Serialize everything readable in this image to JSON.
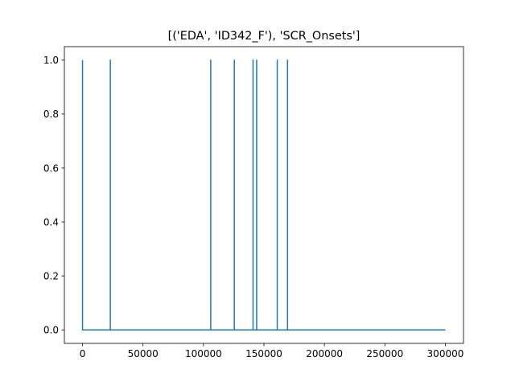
{
  "chart_data": {
    "type": "line",
    "title": "[('EDA', 'ID342_F'), 'SCR_Onsets']",
    "xlabel": "",
    "ylabel": "",
    "xlim": [
      -15000,
      315000
    ],
    "ylim": [
      -0.05,
      1.05
    ],
    "x_ticks": [
      0,
      50000,
      100000,
      150000,
      200000,
      250000,
      300000
    ],
    "x_tick_labels": [
      "0",
      "50000",
      "100000",
      "150000",
      "200000",
      "250000",
      "300000"
    ],
    "y_ticks": [
      0.0,
      0.2,
      0.4,
      0.6,
      0.8,
      1.0
    ],
    "y_tick_labels": [
      "0.0",
      "0.2",
      "0.4",
      "0.6",
      "0.8",
      "1.0"
    ],
    "grid": false,
    "legend": false,
    "series": [
      {
        "color": "#1f77b4",
        "x_range": [
          0,
          300000
        ],
        "baseline": 0,
        "onsets": [
          0,
          23000,
          106000,
          125500,
          141000,
          144000,
          161000,
          169500
        ],
        "onset_value": 1
      }
    ]
  }
}
